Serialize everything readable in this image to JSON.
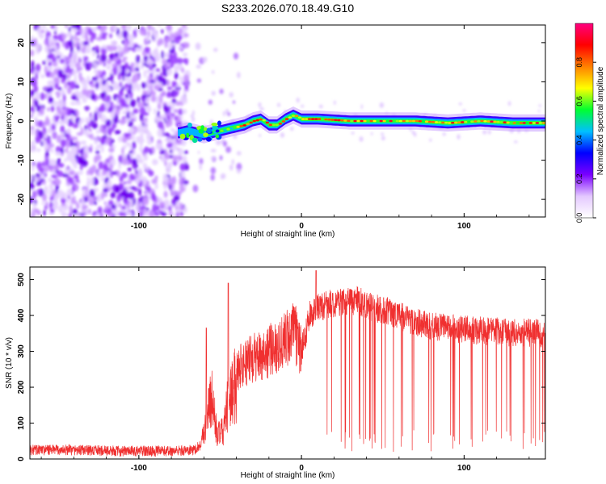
{
  "chart_data": [
    {
      "type": "heatmap",
      "title": "S233.2026.070.18.49.G10",
      "xlabel": "Height of straight line (km)",
      "ylabel": "Frequency (Hz)",
      "xlim": [
        -167,
        150
      ],
      "ylim": [
        -24.5,
        24.5
      ],
      "xticks": [
        "-100",
        "0",
        "100"
      ],
      "yticks": [
        "20",
        "10",
        "0",
        "-10",
        "-20"
      ],
      "colorbar": {
        "label": "Normalized spectral amplitude",
        "range": [
          0,
          1
        ],
        "ticks": [
          "0.0",
          "0.2",
          "0.4",
          "0.6",
          "0.8"
        ],
        "colormap": [
          "#ffffff",
          "#e4c8ff",
          "#7a00ff",
          "#0000ff",
          "#00c0ff",
          "#00ff30",
          "#ffff00",
          "#ff8000",
          "#ff0000",
          "#ff0080"
        ]
      },
      "ridge": {
        "x": [
          -75,
          -70,
          -65,
          -60,
          -55,
          -50,
          -45,
          -40,
          -35,
          -30,
          -25,
          -20,
          -15,
          -10,
          -5,
          0,
          10,
          30,
          50,
          70,
          90,
          110,
          130,
          150
        ],
        "frequency": [
          -3,
          -2.5,
          -3,
          -3.5,
          -3,
          -2.5,
          -2,
          -1.5,
          -1,
          0,
          0.5,
          -1,
          -1,
          0.5,
          1.5,
          0.5,
          0.5,
          0,
          0,
          0,
          -0.5,
          0,
          -0.5,
          -0.5
        ]
      }
    },
    {
      "type": "line",
      "xlabel": "Height of straight line (km)",
      "ylabel": "SNR (10 * v/v)",
      "xlim": [
        -167,
        150
      ],
      "ylim": [
        0,
        535
      ],
      "xticks": [
        "-100",
        "0",
        "100"
      ],
      "yticks": [
        "0",
        "100",
        "200",
        "300",
        "400",
        "500"
      ],
      "color": "#f03030",
      "envelope": {
        "x": [
          -167,
          -140,
          -110,
          -80,
          -66,
          -62,
          -58,
          -55,
          -52,
          -48,
          -45,
          -42,
          -38,
          -30,
          -20,
          -10,
          -5,
          0,
          5,
          10,
          15,
          25,
          35,
          45,
          55,
          65,
          80,
          100,
          120,
          150
        ],
        "snr": [
          25,
          25,
          22,
          22,
          25,
          40,
          150,
          200,
          80,
          90,
          190,
          230,
          260,
          280,
          300,
          330,
          360,
          300,
          400,
          420,
          430,
          440,
          440,
          420,
          410,
          390,
          370,
          360,
          355,
          350
        ]
      }
    }
  ]
}
